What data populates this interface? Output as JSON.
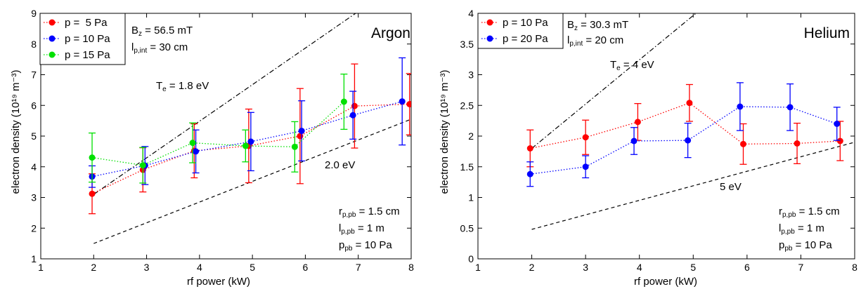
{
  "chart_data": [
    {
      "type": "line",
      "title": "Argon",
      "xlabel": "rf power (kW)",
      "ylabel": "electron density (10¹⁹ m⁻³)",
      "xlim": [
        1,
        8
      ],
      "ylim": [
        1,
        9
      ],
      "xticks": [
        1,
        2,
        3,
        4,
        5,
        6,
        7,
        8
      ],
      "yticks": [
        1,
        2,
        3,
        4,
        5,
        6,
        7,
        8,
        9
      ],
      "legend_position": "top-left",
      "series": [
        {
          "name": "p =  5 Pa",
          "color": "#ff0000",
          "x": [
            1.97,
            2.93,
            3.9,
            4.93,
            5.9,
            6.93,
            7.97
          ],
          "y": [
            3.12,
            3.9,
            4.52,
            4.68,
            5.0,
            5.98,
            6.04
          ],
          "err": [
            0.65,
            0.72,
            0.88,
            1.2,
            1.55,
            1.37,
            1.0
          ]
        },
        {
          "name": "p = 10 Pa",
          "color": "#0000ff",
          "x": [
            1.97,
            2.97,
            3.93,
            4.97,
            5.93,
            6.9,
            7.83
          ],
          "y": [
            3.68,
            4.04,
            4.5,
            4.82,
            5.17,
            5.68,
            6.13
          ],
          "err": [
            0.35,
            0.62,
            0.7,
            0.95,
            0.98,
            0.78,
            1.42
          ]
        },
        {
          "name": "p = 15 Pa",
          "color": "#00e000",
          "x": [
            1.97,
            2.93,
            3.87,
            4.87,
            5.8,
            6.73
          ],
          "y": [
            4.3,
            4.05,
            4.78,
            4.68,
            4.65,
            6.12
          ],
          "err": [
            0.8,
            0.58,
            0.65,
            0.52,
            0.82,
            0.9
          ]
        }
      ],
      "reference_lines": [
        {
          "label": "T",
          "label_sub": "e",
          "label_rest": " = 1.8 eV",
          "x": [
            2.0,
            6.95
          ],
          "y": [
            3.1,
            9.0
          ]
        },
        {
          "label": "2.0 eV",
          "label_sub": "",
          "label_rest": "",
          "x": [
            2.0,
            8.0
          ],
          "y": [
            1.5,
            5.55
          ]
        }
      ],
      "annotations": {
        "bz": {
          "main": "B",
          "sub": "z",
          "rest": " = 56.5 mT"
        },
        "lpint": {
          "main": "l",
          "sub": "p,int",
          "rest": " = 30 cm"
        },
        "rppb": {
          "main": "r",
          "sub": "p,pb",
          "rest": " = 1.5 cm"
        },
        "lppb": {
          "main": "l",
          "sub": "p,pb",
          "rest": " = 1 m"
        },
        "ppb": {
          "main": "p",
          "sub": "pb",
          "rest": " = 10 Pa"
        }
      }
    },
    {
      "type": "line",
      "title": "Helium",
      "xlabel": "rf power (kW)",
      "ylabel": "electron density (10¹⁹ m⁻³)",
      "xlim": [
        1,
        8
      ],
      "ylim": [
        0,
        4
      ],
      "xticks": [
        1,
        2,
        3,
        4,
        5,
        6,
        7,
        8
      ],
      "yticks": [
        0,
        0.5,
        1,
        1.5,
        2,
        2.5,
        3,
        3.5,
        4
      ],
      "legend_position": "top-left",
      "series": [
        {
          "name": "p = 10 Pa",
          "color": "#ff0000",
          "x": [
            1.97,
            3.0,
            3.97,
            4.93,
            5.93,
            6.93,
            7.73
          ],
          "y": [
            1.8,
            1.98,
            2.23,
            2.54,
            1.87,
            1.88,
            1.92
          ],
          "err": [
            0.3,
            0.28,
            0.3,
            0.3,
            0.33,
            0.33,
            0.32
          ]
        },
        {
          "name": "p = 20 Pa",
          "color": "#0000ff",
          "x": [
            1.97,
            3.0,
            3.9,
            4.9,
            5.87,
            6.8,
            7.67
          ],
          "y": [
            1.38,
            1.5,
            1.92,
            1.93,
            2.48,
            2.47,
            2.2
          ],
          "err": [
            0.2,
            0.18,
            0.22,
            0.28,
            0.39,
            0.38,
            0.27
          ]
        }
      ],
      "reference_lines": [
        {
          "label": "T",
          "label_sub": "e",
          "label_rest": " = 4 eV",
          "x": [
            2.0,
            5.05
          ],
          "y": [
            1.8,
            4.0
          ]
        },
        {
          "label": "5 eV",
          "label_sub": "",
          "label_rest": "",
          "x": [
            2.0,
            8.0
          ],
          "y": [
            0.48,
            1.9
          ]
        }
      ],
      "annotations": {
        "bz": {
          "main": "B",
          "sub": "z",
          "rest": " = 30.3 mT"
        },
        "lpint": {
          "main": "l",
          "sub": "p,int",
          "rest": " = 20 cm"
        },
        "rppb": {
          "main": "r",
          "sub": "p,pb",
          "rest": " = 1.5 cm"
        },
        "lppb": {
          "main": "l",
          "sub": "p,pb",
          "rest": " = 1 m"
        },
        "ppb": {
          "main": "p",
          "sub": "pb",
          "rest": " = 10 Pa"
        }
      }
    }
  ]
}
